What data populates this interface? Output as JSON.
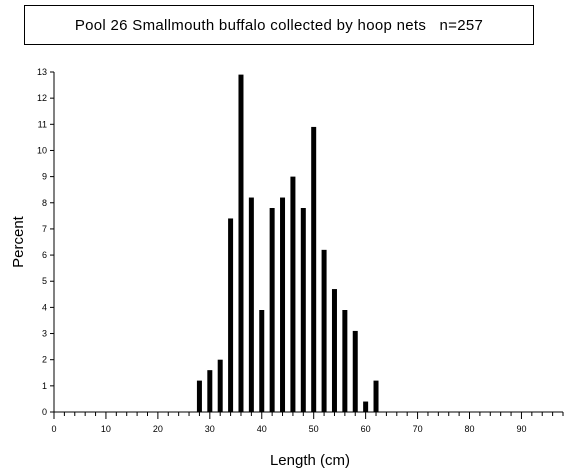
{
  "title": "Pool 26 Smallmouth buffalo collected by hoop nets   n=257",
  "chart_data": {
    "type": "bar",
    "title": "Pool 26 Smallmouth buffalo collected by hoop nets   n=257",
    "xlabel": "Length (cm)",
    "ylabel": "Percent",
    "xlim": [
      0,
      98
    ],
    "ylim": [
      0,
      13
    ],
    "x_ticks": [
      0,
      10,
      20,
      30,
      40,
      50,
      60,
      70,
      80,
      90
    ],
    "y_ticks": [
      0,
      1,
      2,
      3,
      4,
      5,
      6,
      7,
      8,
      9,
      10,
      11,
      12,
      13
    ],
    "bar_color": "#000000",
    "grid": false,
    "x": [
      28,
      30,
      32,
      34,
      36,
      38,
      40,
      42,
      44,
      46,
      48,
      50,
      52,
      54,
      56,
      58,
      60,
      62
    ],
    "values": [
      1.2,
      1.6,
      2.0,
      7.4,
      12.9,
      8.2,
      3.9,
      7.8,
      8.2,
      9.0,
      7.8,
      10.9,
      6.2,
      4.7,
      3.9,
      3.1,
      0.4,
      1.2
    ]
  }
}
